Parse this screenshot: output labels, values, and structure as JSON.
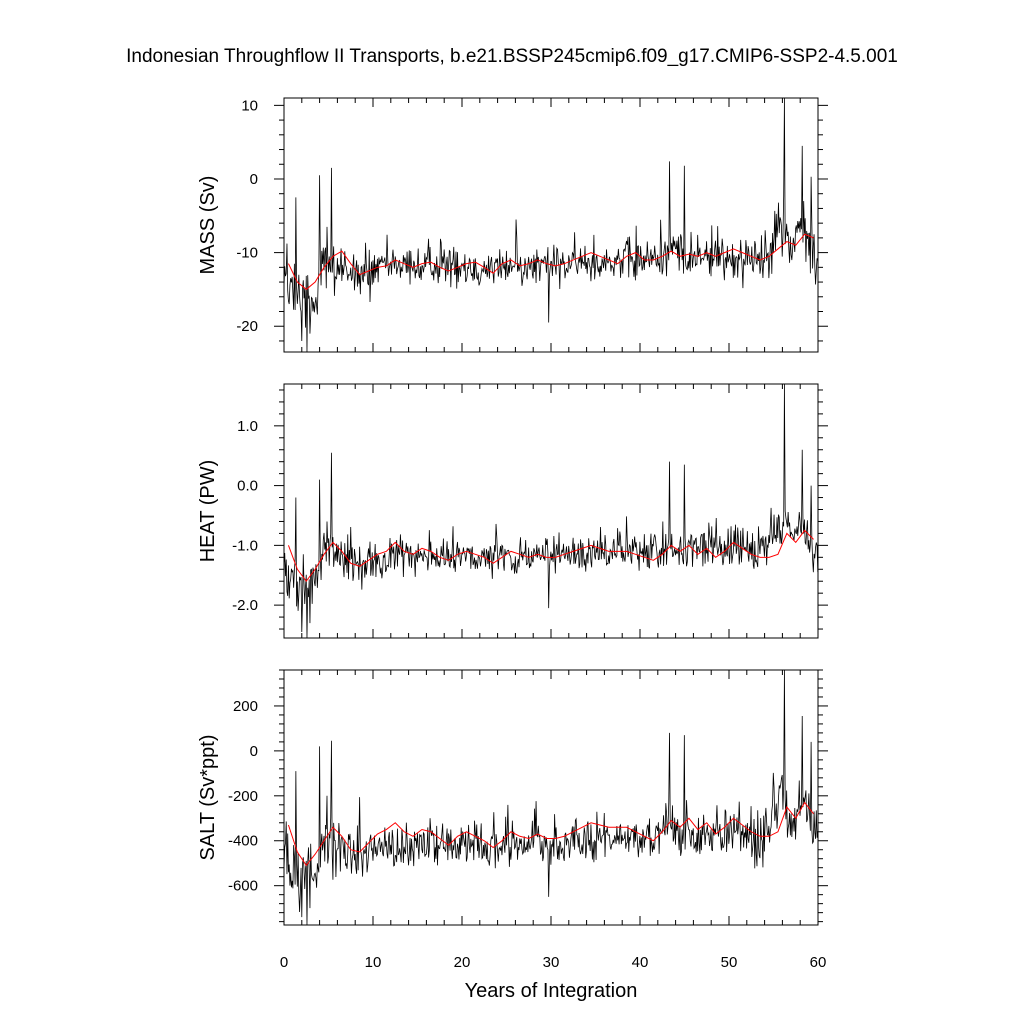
{
  "chart_data": {
    "type": "line",
    "title": "Indonesian Throughflow II Transports, b.e21.BSSP245cmip6.f09_g17.CMIP6-SSP2-4.5.001",
    "xlabel": "Years of Integration",
    "xlim": [
      0,
      60
    ],
    "x_ticks": [
      "0",
      "10",
      "20",
      "30",
      "40",
      "50",
      "60"
    ],
    "panels": [
      {
        "ylabel": "MASS (Sv)",
        "ylim": [
          -23.5,
          11
        ],
        "y_ticks": [
          10,
          0,
          -10,
          -20
        ],
        "y_tick_labels": [
          "10",
          "0",
          "-10",
          "-20"
        ],
        "series": [
          {
            "kind": "monthly",
            "color": "#000000",
            "x0": 0,
            "dx": 0.0833,
            "anchor_x": [
              0,
              0.4,
              1,
              1.5,
              2,
              2.5,
              3,
              4,
              4.5,
              5,
              5.5,
              6,
              8,
              10,
              12,
              15,
              20,
              23,
              25,
              30,
              34,
              38,
              42,
              43.2,
              45,
              50,
              53.5,
              56.2,
              57,
              58.2,
              59,
              60
            ],
            "anchor_y": [
              -11,
              -15.5,
              -16,
              -17,
              -16.5,
              -16,
              -17,
              -14,
              -12,
              -11.5,
              -13,
              -12,
              -13.5,
              -13,
              -12,
              -12,
              -11.5,
              -12.5,
              -12,
              -12,
              -11.5,
              -11,
              -11,
              -9,
              -11,
              -10.5,
              -11,
              -6,
              -10,
              -6,
              -9,
              -12
            ],
            "noise": [
              {
                "x0": 0,
                "x1": 6,
                "amp": 5.5
              },
              {
                "x0": 6,
                "x1": 10,
                "amp": 4.5
              },
              {
                "x0": 10,
                "x1": 42,
                "amp": 3.5
              },
              {
                "x0": 42,
                "x1": 60,
                "amp": 4.5
              }
            ],
            "spikes": [
              {
                "x": 1.3,
                "y": -2.5
              },
              {
                "x": 2.0,
                "y": -22
              },
              {
                "x": 2.6,
                "y": -23.5
              },
              {
                "x": 2.9,
                "y": -21
              },
              {
                "x": 4.0,
                "y": 0.5
              },
              {
                "x": 4.8,
                "y": -6.5
              },
              {
                "x": 5.3,
                "y": 1.5
              },
              {
                "x": 26.1,
                "y": -5.5
              },
              {
                "x": 29.7,
                "y": -19.5
              },
              {
                "x": 43.3,
                "y": 2.4
              },
              {
                "x": 45.0,
                "y": 1.8
              },
              {
                "x": 56.2,
                "y": 11
              },
              {
                "x": 58.2,
                "y": 4.5
              },
              {
                "x": 59.2,
                "y": 0.3
              }
            ]
          },
          {
            "kind": "annual mean",
            "color": "#ff0000",
            "x": [
              0.5,
              1.5,
              2.5,
              3.5,
              4.5,
              5.5,
              6.5,
              7.5,
              8.5,
              9.5,
              10.5,
              11.5,
              12.5,
              13.5,
              14.5,
              15.5,
              16.5,
              17.5,
              18.5,
              19.5,
              20.5,
              21.5,
              22.5,
              23.5,
              24.5,
              25.5,
              26.5,
              27.5,
              28.5,
              29.5,
              30.5,
              31.5,
              32.5,
              33.5,
              34.5,
              35.5,
              36.5,
              37.5,
              38.5,
              39.5,
              40.5,
              41.5,
              42.5,
              43.5,
              44.5,
              45.5,
              46.5,
              47.5,
              48.5,
              49.5,
              50.5,
              51.5,
              52.5,
              53.5,
              54.5,
              55.5,
              56.5,
              57.5,
              58.5,
              59.5
            ],
            "y": [
              -11.5,
              -14.0,
              -15.0,
              -14.0,
              -12.0,
              -10.5,
              -9.8,
              -11.5,
              -13.0,
              -12.5,
              -12.0,
              -11.8,
              -11.0,
              -11.5,
              -12.0,
              -11.5,
              -11.3,
              -12.0,
              -12.5,
              -12.0,
              -11.5,
              -11.3,
              -12.0,
              -12.8,
              -11.5,
              -11.0,
              -11.8,
              -11.5,
              -11.0,
              -11.5,
              -11.8,
              -11.5,
              -11.0,
              -10.5,
              -10.0,
              -10.5,
              -11.0,
              -11.5,
              -10.5,
              -10.0,
              -11.0,
              -11.0,
              -10.5,
              -9.8,
              -10.5,
              -10.2,
              -10.5,
              -10.0,
              -10.5,
              -10.0,
              -9.5,
              -10.0,
              -10.5,
              -11.0,
              -10.5,
              -9.5,
              -8.5,
              -9.0,
              -7.5,
              -8.0
            ]
          }
        ]
      },
      {
        "ylabel": "HEAT (PW)",
        "ylim": [
          -2.55,
          1.7
        ],
        "y_ticks": [
          1.0,
          0.0,
          -1.0,
          -2.0
        ],
        "y_tick_labels": [
          "1.0",
          "0.0",
          "-1.0",
          "-2.0"
        ],
        "series": [
          {
            "kind": "monthly",
            "color": "#000000",
            "x0": 0,
            "dx": 0.0833,
            "anchor_x": [
              0,
              0.4,
              1,
              1.5,
              2,
              2.5,
              3,
              4,
              4.5,
              5,
              5.5,
              6,
              8,
              10,
              12,
              15,
              20,
              23,
              25,
              30,
              34,
              38,
              42,
              43.2,
              45,
              50,
              53.5,
              56.2,
              57,
              58.2,
              59,
              60
            ],
            "anchor_y": [
              -1.1,
              -1.5,
              -1.6,
              -1.7,
              -1.65,
              -1.6,
              -1.7,
              -1.35,
              -1.15,
              -1.1,
              -1.25,
              -1.2,
              -1.3,
              -1.3,
              -1.2,
              -1.2,
              -1.15,
              -1.25,
              -1.2,
              -1.2,
              -1.15,
              -1.1,
              -1.1,
              -0.9,
              -1.1,
              -1.05,
              -1.1,
              -0.65,
              -1.0,
              -0.7,
              -0.95,
              -1.2
            ],
            "noise": [
              {
                "x0": 0,
                "x1": 6,
                "amp": 0.6
              },
              {
                "x0": 6,
                "x1": 10,
                "amp": 0.5
              },
              {
                "x0": 10,
                "x1": 42,
                "amp": 0.4
              },
              {
                "x0": 42,
                "x1": 60,
                "amp": 0.5
              }
            ],
            "spikes": [
              {
                "x": 1.3,
                "y": -0.2
              },
              {
                "x": 2.0,
                "y": -2.45
              },
              {
                "x": 2.6,
                "y": -2.55
              },
              {
                "x": 2.9,
                "y": -2.3
              },
              {
                "x": 4.0,
                "y": 0.1
              },
              {
                "x": 4.8,
                "y": -0.6
              },
              {
                "x": 5.3,
                "y": 0.55
              },
              {
                "x": 29.7,
                "y": -2.05
              },
              {
                "x": 43.3,
                "y": 0.4
              },
              {
                "x": 45.0,
                "y": 0.35
              },
              {
                "x": 56.2,
                "y": 1.7
              },
              {
                "x": 58.2,
                "y": 0.6
              },
              {
                "x": 59.2,
                "y": 0.0
              }
            ]
          },
          {
            "kind": "annual mean",
            "color": "#ff0000",
            "x": [
              0.5,
              1.5,
              2.5,
              3.5,
              4.5,
              5.5,
              6.5,
              7.5,
              8.5,
              9.5,
              10.5,
              11.5,
              12.5,
              13.5,
              14.5,
              15.5,
              16.5,
              17.5,
              18.5,
              19.5,
              20.5,
              21.5,
              22.5,
              23.5,
              24.5,
              25.5,
              26.5,
              27.5,
              28.5,
              29.5,
              30.5,
              31.5,
              32.5,
              33.5,
              34.5,
              35.5,
              36.5,
              37.5,
              38.5,
              39.5,
              40.5,
              41.5,
              42.5,
              43.5,
              44.5,
              45.5,
              46.5,
              47.5,
              48.5,
              49.5,
              50.5,
              51.5,
              52.5,
              53.5,
              54.5,
              55.5,
              56.5,
              57.5,
              58.5,
              59.5
            ],
            "y": [
              -1.0,
              -1.4,
              -1.6,
              -1.4,
              -1.15,
              -0.95,
              -1.1,
              -1.3,
              -1.35,
              -1.25,
              -1.15,
              -1.1,
              -0.95,
              -1.1,
              -1.15,
              -1.05,
              -1.1,
              -1.2,
              -1.25,
              -1.15,
              -1.1,
              -1.15,
              -1.2,
              -1.3,
              -1.2,
              -1.1,
              -1.15,
              -1.2,
              -1.15,
              -1.2,
              -1.2,
              -1.15,
              -1.1,
              -1.05,
              -1.0,
              -1.05,
              -1.1,
              -1.1,
              -1.1,
              -1.15,
              -1.2,
              -1.25,
              -1.15,
              -1.0,
              -1.1,
              -1.0,
              -1.15,
              -1.05,
              -1.2,
              -1.1,
              -0.95,
              -1.05,
              -1.15,
              -1.2,
              -1.2,
              -1.15,
              -0.8,
              -0.95,
              -0.75,
              -0.9
            ]
          }
        ]
      },
      {
        "ylabel": "SALT (Sv*ppt)",
        "ylim": [
          -775,
          360
        ],
        "y_ticks": [
          200,
          0,
          -200,
          -400,
          -600
        ],
        "y_tick_labels": [
          "200",
          "0",
          "-200",
          "-400",
          "-600"
        ],
        "series": [
          {
            "kind": "monthly",
            "color": "#000000",
            "x0": 0,
            "dx": 0.0833,
            "anchor_x": [
              0,
              0.4,
              1,
              1.5,
              2,
              2.5,
              3,
              4,
              4.5,
              5,
              5.5,
              6,
              8,
              10,
              12,
              15,
              20,
              23,
              25,
              30,
              34,
              38,
              42,
              43.2,
              45,
              50,
              53.5,
              56.2,
              57,
              58.2,
              59,
              60
            ],
            "anchor_y": [
              -380,
              -520,
              -550,
              -580,
              -560,
              -540,
              -580,
              -480,
              -420,
              -400,
              -450,
              -420,
              -460,
              -450,
              -420,
              -420,
              -400,
              -430,
              -420,
              -420,
              -400,
              -390,
              -385,
              -320,
              -385,
              -370,
              -385,
              -220,
              -350,
              -230,
              -320,
              -420
            ],
            "noise": [
              {
                "x0": 0,
                "x1": 6,
                "amp": 190
              },
              {
                "x0": 6,
                "x1": 10,
                "amp": 160
              },
              {
                "x0": 10,
                "x1": 42,
                "amp": 120
              },
              {
                "x0": 42,
                "x1": 60,
                "amp": 160
              }
            ],
            "spikes": [
              {
                "x": 1.3,
                "y": -90
              },
              {
                "x": 2.0,
                "y": -740
              },
              {
                "x": 2.6,
                "y": -775
              },
              {
                "x": 2.9,
                "y": -700
              },
              {
                "x": 4.0,
                "y": 20
              },
              {
                "x": 4.8,
                "y": -200
              },
              {
                "x": 5.3,
                "y": 45
              },
              {
                "x": 29.7,
                "y": -650
              },
              {
                "x": 43.3,
                "y": 80
              },
              {
                "x": 45.0,
                "y": 70
              },
              {
                "x": 56.2,
                "y": 360
              },
              {
                "x": 58.2,
                "y": 155
              },
              {
                "x": 59.2,
                "y": 40
              }
            ]
          },
          {
            "kind": "annual mean",
            "color": "#ff0000",
            "x": [
              0.5,
              1.5,
              2.5,
              3.5,
              4.5,
              5.5,
              6.5,
              7.5,
              8.5,
              9.5,
              10.5,
              11.5,
              12.5,
              13.5,
              14.5,
              15.5,
              16.5,
              17.5,
              18.5,
              19.5,
              20.5,
              21.5,
              22.5,
              23.5,
              24.5,
              25.5,
              26.5,
              27.5,
              28.5,
              29.5,
              30.5,
              31.5,
              32.5,
              33.5,
              34.5,
              35.5,
              36.5,
              37.5,
              38.5,
              39.5,
              40.5,
              41.5,
              42.5,
              43.5,
              44.5,
              45.5,
              46.5,
              47.5,
              48.5,
              49.5,
              50.5,
              51.5,
              52.5,
              53.5,
              54.5,
              55.5,
              56.5,
              57.5,
              58.5,
              59.5
            ],
            "y": [
              -330,
              -450,
              -510,
              -460,
              -400,
              -340,
              -380,
              -440,
              -450,
              -410,
              -370,
              -350,
              -320,
              -360,
              -380,
              -350,
              -360,
              -390,
              -420,
              -380,
              -360,
              -380,
              -400,
              -430,
              -400,
              -360,
              -380,
              -390,
              -370,
              -390,
              -390,
              -380,
              -360,
              -340,
              -320,
              -330,
              -340,
              -340,
              -340,
              -360,
              -380,
              -400,
              -360,
              -310,
              -340,
              -300,
              -350,
              -320,
              -370,
              -340,
              -300,
              -330,
              -360,
              -380,
              -380,
              -360,
              -250,
              -300,
              -230,
              -280
            ]
          }
        ]
      }
    ]
  }
}
